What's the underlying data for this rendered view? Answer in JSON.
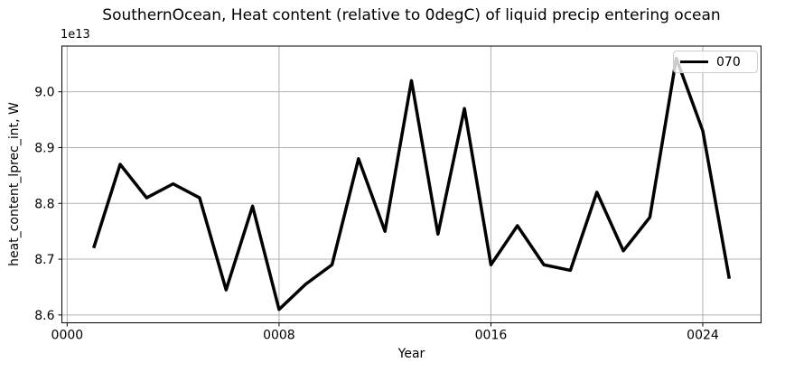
{
  "chart_data": {
    "type": "line",
    "title": "SouthernOcean, Heat content (relative to 0degC) of liquid precip entering ocean",
    "xlabel": "Year",
    "ylabel": "heat_content_lprec_int, W",
    "y_offset_text": "1e13",
    "x": [
      1,
      2,
      3,
      4,
      5,
      6,
      7,
      8,
      9,
      10,
      11,
      12,
      13,
      14,
      15,
      16,
      17,
      18,
      19,
      20,
      21,
      22,
      23,
      24,
      25
    ],
    "series": [
      {
        "name": "070",
        "color": "#000000",
        "line_width": 3.5,
        "values": [
          8.72,
          8.87,
          8.81,
          8.835,
          8.81,
          8.645,
          8.795,
          8.61,
          8.655,
          8.69,
          8.88,
          8.75,
          9.02,
          8.745,
          8.97,
          8.69,
          8.76,
          8.69,
          8.68,
          8.82,
          8.715,
          8.775,
          9.06,
          8.93,
          8.665
        ]
      }
    ],
    "xlim": [
      -0.2,
      26.2
    ],
    "ylim": [
      8.586,
      9.082
    ],
    "xticks": [
      0,
      8,
      16,
      24
    ],
    "xtick_labels": [
      "0000",
      "0008",
      "0016",
      "0024"
    ],
    "yticks": [
      8.6,
      8.7,
      8.8,
      8.9,
      9.0
    ],
    "ytick_labels": [
      "8.6",
      "8.7",
      "8.8",
      "8.9",
      "9.0"
    ],
    "grid": true,
    "grid_color": "#b0b0b0",
    "spine_color": "#000000",
    "tick_label_color": "#000000",
    "legend": {
      "position": "upper right",
      "entries": [
        "070"
      ]
    }
  }
}
